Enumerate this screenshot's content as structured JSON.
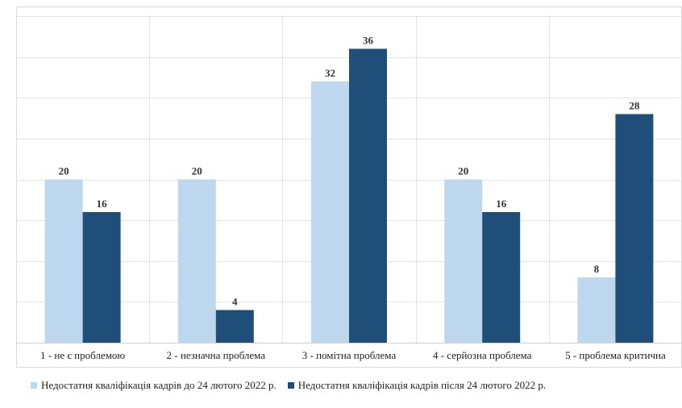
{
  "chart_data": {
    "type": "bar",
    "categories": [
      "1 - не є проблемою",
      "2 - незначна проблема",
      "3 - помітна проблема",
      "4 - серйозна проблема",
      "5 - проблема критична"
    ],
    "series": [
      {
        "name": "Недостатня кваліфікація кадрів до 24 лютого 2022 р.",
        "color": "#bdd7ee",
        "values": [
          20,
          20,
          32,
          20,
          8
        ]
      },
      {
        "name": "Недостатня кваліфікація кадрів після 24 лютого 2022 р.",
        "color": "#1f4e79",
        "values": [
          16,
          4,
          36,
          16,
          28
        ]
      }
    ],
    "ylim": [
      0,
      40
    ],
    "y_gridline_step": 5,
    "grid": true,
    "data_labels": true,
    "legend_position": "bottom"
  }
}
